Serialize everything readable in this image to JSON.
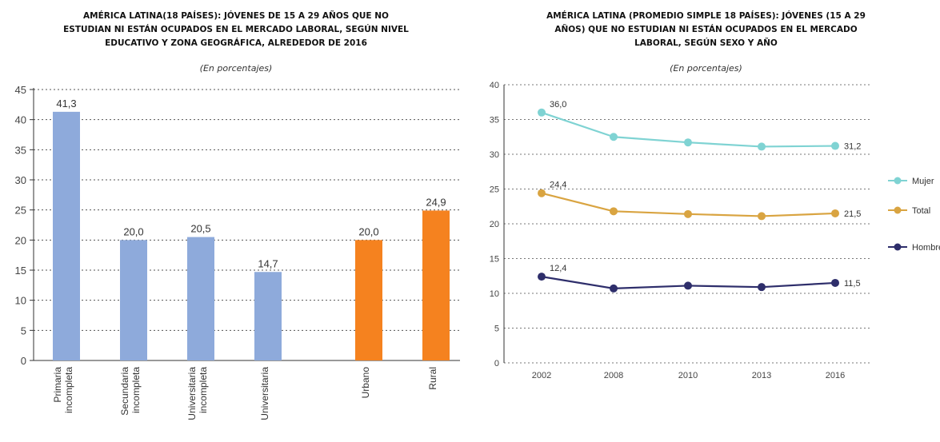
{
  "chart_data": [
    {
      "type": "bar",
      "title_lines": [
        "AMÉRICA LATINA(18 PAÍSES): JÓVENES DE 15 A 29 AÑOS QUE NO",
        "ESTUDIAN NI ESTÁN OCUPADOS EN EL MERCADO LABORAL, SEGÚN NIVEL",
        "EDUCATIVO Y ZONA GEOGRÁFICA, ALREDEDOR DE 2016"
      ],
      "subtitle": "(En porcentajes)",
      "categories": [
        [
          "Primaria",
          "incompleta"
        ],
        [
          "Secundaria",
          "incompleta"
        ],
        [
          "Universitaria",
          "incompleta"
        ],
        [
          "Universitaria"
        ],
        [
          "Urbano"
        ],
        [
          "Rural"
        ]
      ],
      "values": [
        41.3,
        20.0,
        20.5,
        14.7,
        20.0,
        24.9
      ],
      "value_labels": [
        "41,3",
        "20,0",
        "20,5",
        "14,7",
        "20,0",
        "24,9"
      ],
      "colors": [
        "#8eaadb",
        "#8eaadb",
        "#8eaadb",
        "#8eaadb",
        "#f5821f",
        "#f5821f"
      ],
      "ylim": [
        0,
        45
      ],
      "yticks": [
        "0",
        "5",
        "10",
        "15",
        "20",
        "25",
        "30",
        "35",
        "40",
        "45"
      ],
      "grid": true
    },
    {
      "type": "line",
      "title_lines": [
        "AMÉRICA LATINA (PROMEDIO SIMPLE 18 PAÍSES): JÓVENES (15 A 29",
        "AÑOS) QUE NO ESTUDIAN NI ESTÁN OCUPADOS EN EL MERCADO",
        "LABORAL, SEGÚN SEXO Y AÑO"
      ],
      "subtitle": "(En porcentajes)",
      "x": [
        "2002",
        "2008",
        "2010",
        "2013",
        "2016"
      ],
      "series": [
        {
          "name": "Mujer",
          "color": "#7fd3d3",
          "values": [
            36.0,
            32.5,
            31.7,
            31.1,
            31.2
          ],
          "first_label": "36,0",
          "last_label": "31,2"
        },
        {
          "name": "Total",
          "color": "#d9a441",
          "values": [
            24.4,
            21.8,
            21.4,
            21.1,
            21.5
          ],
          "first_label": "24,4",
          "last_label": "21,5"
        },
        {
          "name": "Hombre",
          "color": "#2e2e6b",
          "values": [
            12.4,
            10.7,
            11.1,
            10.9,
            11.5
          ],
          "first_label": "12,4",
          "last_label": "11,5"
        }
      ],
      "legend_labels": [
        "Mujer",
        "Total",
        "Hombre"
      ],
      "legend_position": "right",
      "ylim": [
        0,
        40
      ],
      "yticks": [
        "0",
        "5",
        "10",
        "15",
        "20",
        "25",
        "30",
        "35",
        "40"
      ],
      "grid": true
    }
  ]
}
